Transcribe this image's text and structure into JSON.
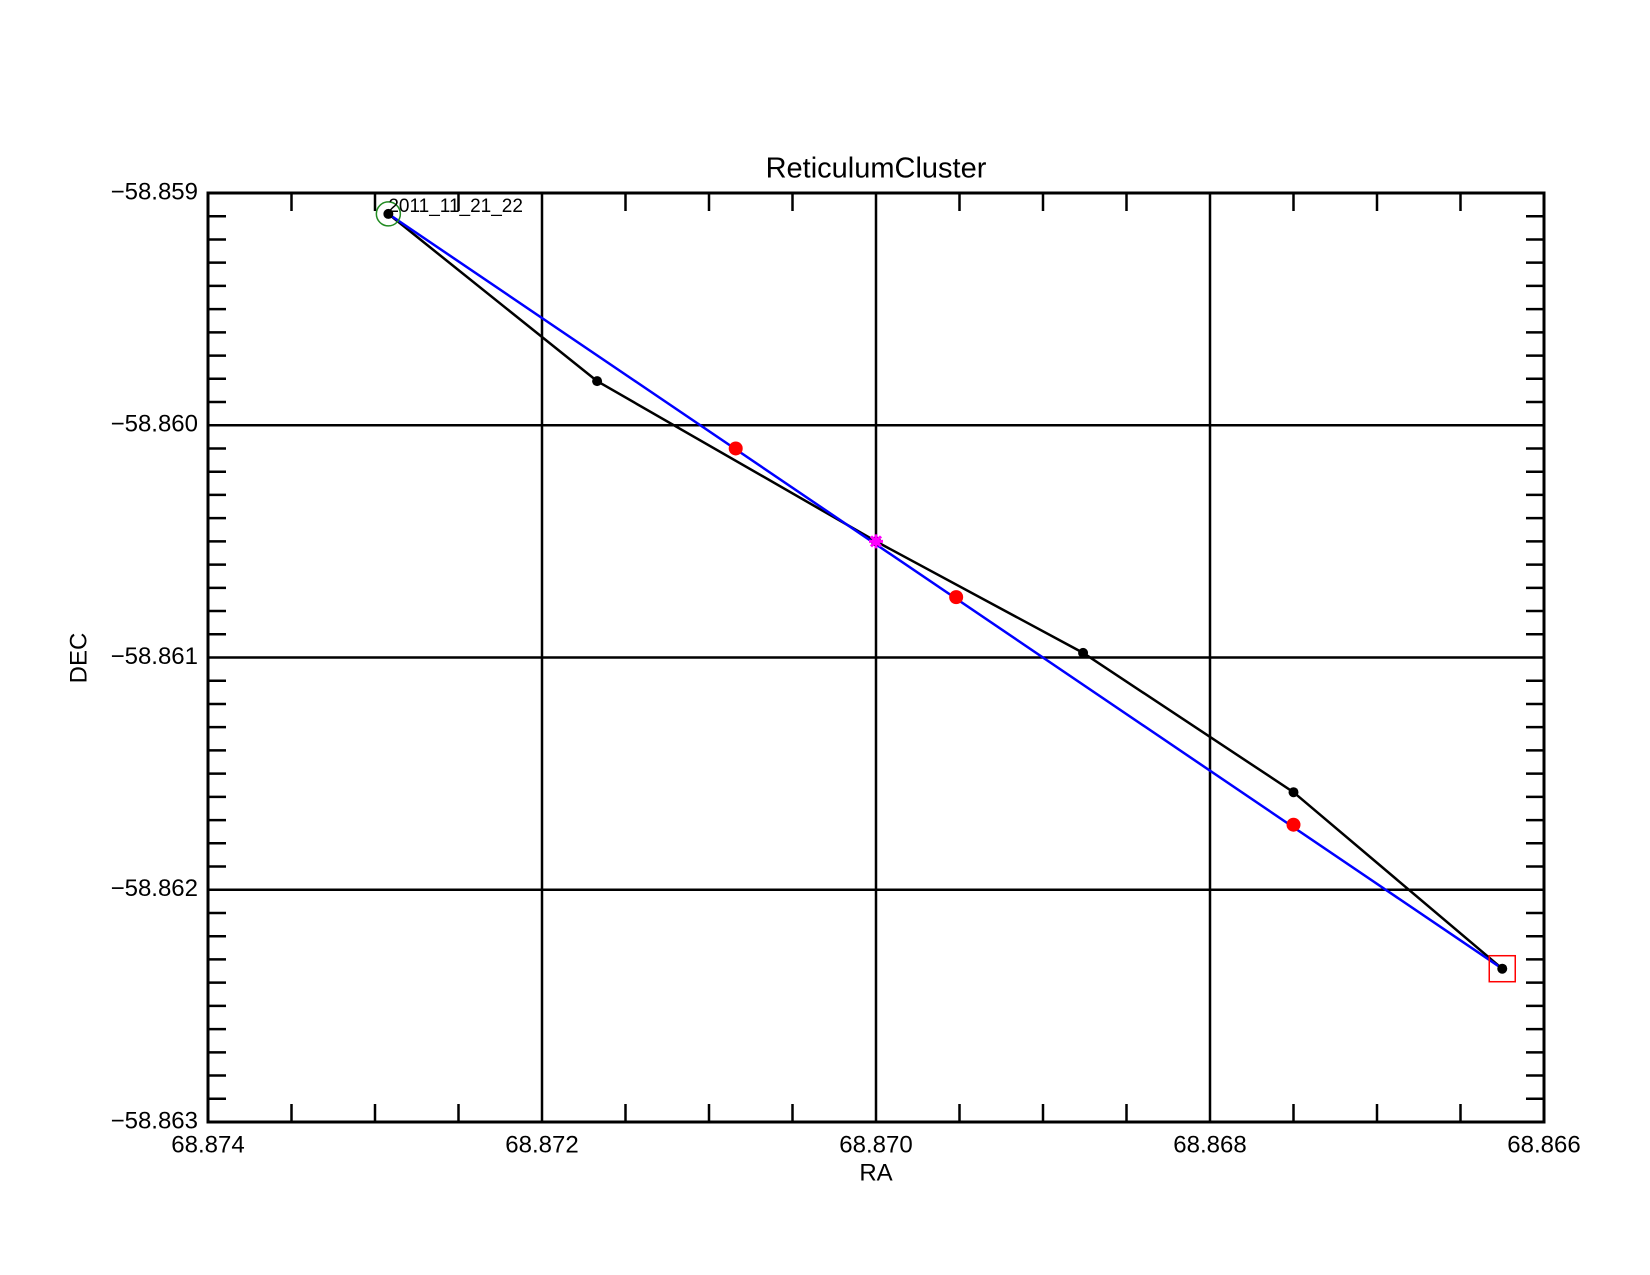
{
  "chart_data": {
    "type": "scatter",
    "title": "ReticulumCluster",
    "x_label": "RA",
    "y_label": "DEC",
    "annotation": "2011_11_21_22",
    "xlim": [
      68.874,
      68.866
    ],
    "xticks": [
      68.874,
      68.872,
      {
        "value": 68.87,
        "label": "68.870"
      },
      68.868,
      68.866
    ],
    "ylim": [
      -58.863,
      -58.859
    ],
    "yticks": [
      {
        "value": -58.859,
        "label": "−58.859"
      },
      {
        "value": -58.86,
        "label": "−58.860"
      },
      {
        "value": -58.861,
        "label": "−58.861"
      },
      {
        "value": -58.862,
        "label": "−58.862"
      },
      {
        "value": -58.863,
        "label": "−58.863"
      }
    ],
    "x_minor_divisions": 4,
    "y_minor_divisions": 10,
    "grid": true,
    "series": [
      {
        "color": "#000000",
        "line": true,
        "marker": "dot",
        "x": [
          68.87292,
          68.87167,
          68.87,
          68.86876,
          68.8675,
          68.86625
        ],
        "values": [
          -58.85909,
          -58.85981,
          -58.8605,
          -58.86098,
          -58.86158,
          -58.86234
        ]
      },
      {
        "color": "#0000ff",
        "line": true,
        "marker": "none",
        "x": [
          68.87292,
          68.86625
        ],
        "values": [
          -58.85909,
          -58.86234
        ]
      },
      {
        "color": "#ff0000",
        "line": false,
        "marker": "dot-large",
        "x": [
          68.87084,
          68.86952,
          68.8675
        ],
        "values": [
          -58.8601,
          -58.86074,
          -58.86172
        ]
      },
      {
        "color": "#ff00ff",
        "line": false,
        "marker": "star",
        "x": [
          68.87
        ],
        "values": [
          -58.8605
        ]
      }
    ],
    "start_marker_color": "#228b22",
    "end_marker_color": "#ff0000"
  }
}
